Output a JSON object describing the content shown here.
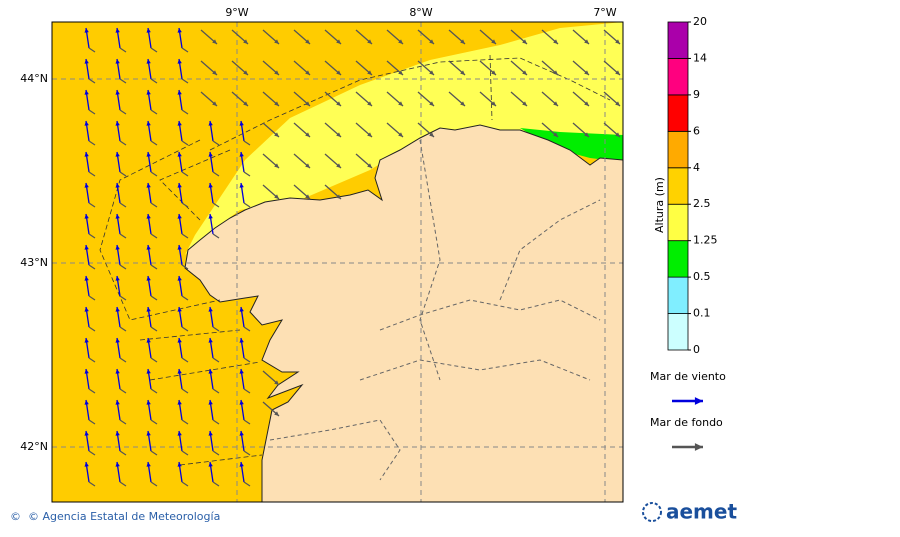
{
  "map": {
    "lon_labels": [
      "9°W",
      "8°W",
      "7°W"
    ],
    "lat_labels": [
      "44°N",
      "43°N",
      "42°N"
    ]
  },
  "colorbar": {
    "title": "Altura (m)",
    "levels": [
      0,
      0.1,
      0.5,
      1.25,
      2.5,
      4,
      6,
      9,
      14,
      20
    ],
    "colors": [
      "#ccffff",
      "#80eeff",
      "#00ee00",
      "#ffff44",
      "#ffd200",
      "#ffaa00",
      "#ff0000",
      "#ff007f",
      "#aa00aa"
    ]
  },
  "legend": [
    {
      "name": "Mar de viento",
      "color": "#0000dd"
    },
    {
      "name": "Mar de fondo",
      "color": "#555555"
    }
  ],
  "footer": "© Agencia Estatal de Meteorología",
  "logo": "aemet"
}
